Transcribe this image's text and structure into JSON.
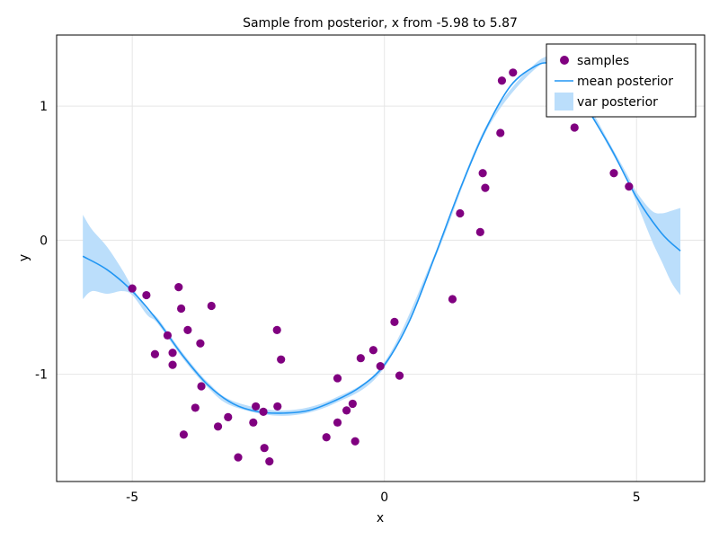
{
  "chart_data": {
    "type": "scatter",
    "title": "Sample from posterior, x from -5.98 to 5.87",
    "xlabel": "x",
    "ylabel": "y",
    "xlim": [
      -6.5,
      6.35
    ],
    "ylim": [
      -1.8,
      1.53
    ],
    "xticks": [
      -5,
      0,
      5
    ],
    "xtick_labels": [
      "-5",
      "0",
      "5"
    ],
    "yticks": [
      -1,
      0,
      1
    ],
    "ytick_labels": [
      "-1",
      "0",
      "1"
    ],
    "grid": true,
    "legend_position": "top-right",
    "legend": [
      "samples",
      "mean posterior",
      "var posterior"
    ],
    "colors": {
      "samples": "#800080",
      "mean": "#2196f3",
      "band": "#bbdefb",
      "grid": "#e6e6e6",
      "frame": "#000000"
    },
    "samples": {
      "name": "samples",
      "points": [
        [
          -5.0,
          -0.36
        ],
        [
          -4.72,
          -0.41
        ],
        [
          -4.55,
          -0.85
        ],
        [
          -4.3,
          -0.71
        ],
        [
          -4.2,
          -0.84
        ],
        [
          -4.2,
          -0.93
        ],
        [
          -4.08,
          -0.35
        ],
        [
          -4.03,
          -0.51
        ],
        [
          -3.98,
          -1.45
        ],
        [
          -3.9,
          -0.67
        ],
        [
          -3.75,
          -1.25
        ],
        [
          -3.65,
          -0.77
        ],
        [
          -3.63,
          -1.09
        ],
        [
          -3.43,
          -0.49
        ],
        [
          -3.3,
          -1.39
        ],
        [
          -3.1,
          -1.32
        ],
        [
          -2.9,
          -1.62
        ],
        [
          -2.6,
          -1.36
        ],
        [
          -2.55,
          -1.24
        ],
        [
          -2.4,
          -1.28
        ],
        [
          -2.38,
          -1.55
        ],
        [
          -2.28,
          -1.65
        ],
        [
          -2.13,
          -0.67
        ],
        [
          -2.12,
          -1.24
        ],
        [
          -2.05,
          -0.89
        ],
        [
          -1.15,
          -1.47
        ],
        [
          -0.93,
          -1.36
        ],
        [
          -0.93,
          -1.03
        ],
        [
          -0.75,
          -1.27
        ],
        [
          -0.63,
          -1.22
        ],
        [
          -0.58,
          -1.5
        ],
        [
          -0.47,
          -0.88
        ],
        [
          -0.22,
          -0.82
        ],
        [
          -0.08,
          -0.94
        ],
        [
          0.2,
          -0.61
        ],
        [
          0.3,
          -1.01
        ],
        [
          1.35,
          -0.44
        ],
        [
          1.5,
          0.2
        ],
        [
          1.9,
          0.06
        ],
        [
          1.95,
          0.5
        ],
        [
          2.0,
          0.39
        ],
        [
          2.3,
          0.8
        ],
        [
          2.33,
          1.19
        ],
        [
          2.55,
          1.25
        ],
        [
          3.77,
          0.84
        ],
        [
          4.55,
          0.5
        ],
        [
          4.85,
          0.4
        ]
      ]
    },
    "mean_posterior": {
      "name": "mean posterior",
      "x": [
        -5.98,
        -5.5,
        -5.0,
        -4.5,
        -4.0,
        -3.5,
        -3.0,
        -2.5,
        -2.0,
        -1.5,
        -1.0,
        -0.5,
        0.0,
        0.5,
        1.0,
        1.5,
        2.0,
        2.5,
        3.0,
        3.3,
        3.6,
        4.0,
        4.5,
        5.0,
        5.5,
        5.87
      ],
      "y": [
        -0.12,
        -0.22,
        -0.38,
        -0.6,
        -0.86,
        -1.08,
        -1.22,
        -1.28,
        -1.29,
        -1.27,
        -1.2,
        -1.1,
        -0.93,
        -0.6,
        -0.12,
        0.38,
        0.82,
        1.15,
        1.3,
        1.32,
        1.28,
        1.0,
        0.68,
        0.32,
        0.05,
        -0.08
      ]
    },
    "var_posterior": {
      "name": "var posterior",
      "x": [
        -5.98,
        -5.8,
        -5.5,
        -5.2,
        -5.0,
        -4.7,
        -4.5,
        -4.0,
        -3.5,
        -3.0,
        -2.0,
        -1.0,
        0.0,
        1.0,
        2.0,
        3.0,
        3.5,
        4.0,
        4.5,
        4.8,
        5.0,
        5.3,
        5.5,
        5.7,
        5.87
      ],
      "lower": [
        -0.44,
        -0.38,
        -0.4,
        -0.38,
        -0.41,
        -0.56,
        -0.62,
        -0.88,
        -1.1,
        -1.24,
        -1.31,
        -1.22,
        -0.95,
        -0.14,
        0.8,
        1.28,
        1.29,
        1.0,
        0.66,
        0.46,
        0.28,
        0.0,
        -0.16,
        -0.32,
        -0.41
      ],
      "upper": [
        0.19,
        0.08,
        -0.05,
        -0.22,
        -0.35,
        -0.52,
        -0.58,
        -0.84,
        -1.06,
        -1.2,
        -1.27,
        -1.18,
        -0.91,
        -0.1,
        0.84,
        1.32,
        1.33,
        1.04,
        0.7,
        0.5,
        0.36,
        0.22,
        0.2,
        0.22,
        0.24
      ]
    }
  }
}
